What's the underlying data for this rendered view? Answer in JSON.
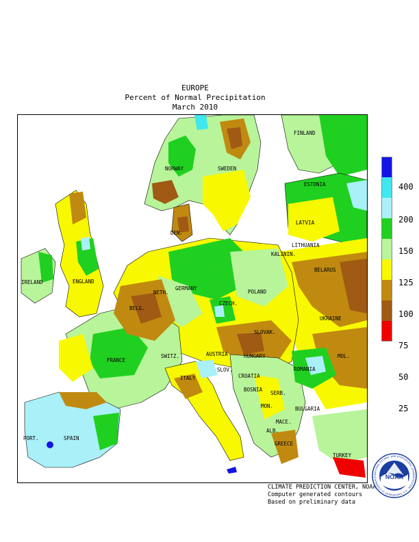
{
  "title": {
    "line1": "EUROPE",
    "line2": "Percent of Normal Precipitation",
    "line3": "March 2010"
  },
  "legend": {
    "bins": [
      {
        "label": "400",
        "color": "#1414e6"
      },
      {
        "label": "200",
        "color": "#3ee8ee"
      },
      {
        "label": "150",
        "color": "#aaf0f8"
      },
      {
        "label": "125",
        "color": "#20d020"
      },
      {
        "label": "100",
        "color": "#b8f49a"
      },
      {
        "label": "75",
        "color": "#f8f800"
      },
      {
        "label": "50",
        "color": "#c08a10"
      },
      {
        "label": "25",
        "color": "#a05a14"
      },
      {
        "label": "",
        "color": "#f00000"
      }
    ]
  },
  "countries": [
    {
      "name": "FINLAND"
    },
    {
      "name": "NORWAY"
    },
    {
      "name": "SWEDEN"
    },
    {
      "name": "ESTONIA"
    },
    {
      "name": "LATVIA"
    },
    {
      "name": "LITHUANIA"
    },
    {
      "name": "KALININ."
    },
    {
      "name": "BELARUS"
    },
    {
      "name": "DEN."
    },
    {
      "name": "IRELAND"
    },
    {
      "name": "ENGLAND"
    },
    {
      "name": "NETH."
    },
    {
      "name": "BELG."
    },
    {
      "name": "GERMANY"
    },
    {
      "name": "POLAND"
    },
    {
      "name": "UKRAINE"
    },
    {
      "name": "CZECH."
    },
    {
      "name": "SLOVAK."
    },
    {
      "name": "FRANCE"
    },
    {
      "name": "SWITZ."
    },
    {
      "name": "AUSTRIA"
    },
    {
      "name": "HUNGARY"
    },
    {
      "name": "MOL."
    },
    {
      "name": "ROMANIA"
    },
    {
      "name": "SLOV."
    },
    {
      "name": "CROATIA"
    },
    {
      "name": "BOSNIA"
    },
    {
      "name": "SERB."
    },
    {
      "name": "ITALY"
    },
    {
      "name": "BULGARIA"
    },
    {
      "name": "MON."
    },
    {
      "name": "MACE."
    },
    {
      "name": "ALB."
    },
    {
      "name": "GREECE"
    },
    {
      "name": "TURKEY"
    },
    {
      "name": "PORT."
    },
    {
      "name": "SPAIN"
    }
  ],
  "credits": {
    "line1": "CLIMATE PREDICTION CENTER, NOAA",
    "line2": "Computer generated contours",
    "line3": "Based on preliminary data"
  },
  "logo": {
    "text": "NOAA",
    "ring_text": "NATIONAL OCEANIC AND ATMOSPHERIC ADMINISTRATION · U.S. DEPARTMENT OF COMMERCE"
  }
}
